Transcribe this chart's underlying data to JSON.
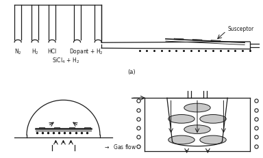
{
  "lc": "#1a1a1a",
  "dc": "#111111",
  "gray_fill": "#b8b8b8",
  "light_gray": "#c8c8c8",
  "white": "#ffffff",
  "label_n2": "N$_2$",
  "label_h2": "H$_2$",
  "label_hcl": "HCl",
  "label_dopant": "Dopant + H$_2$",
  "label_sicl4": "SiCl$_4$ + H$_2$",
  "label_susceptor": "Susceptor",
  "label_gasflow": "$\\rightarrow$  Gas flow",
  "title_a": "(a)"
}
